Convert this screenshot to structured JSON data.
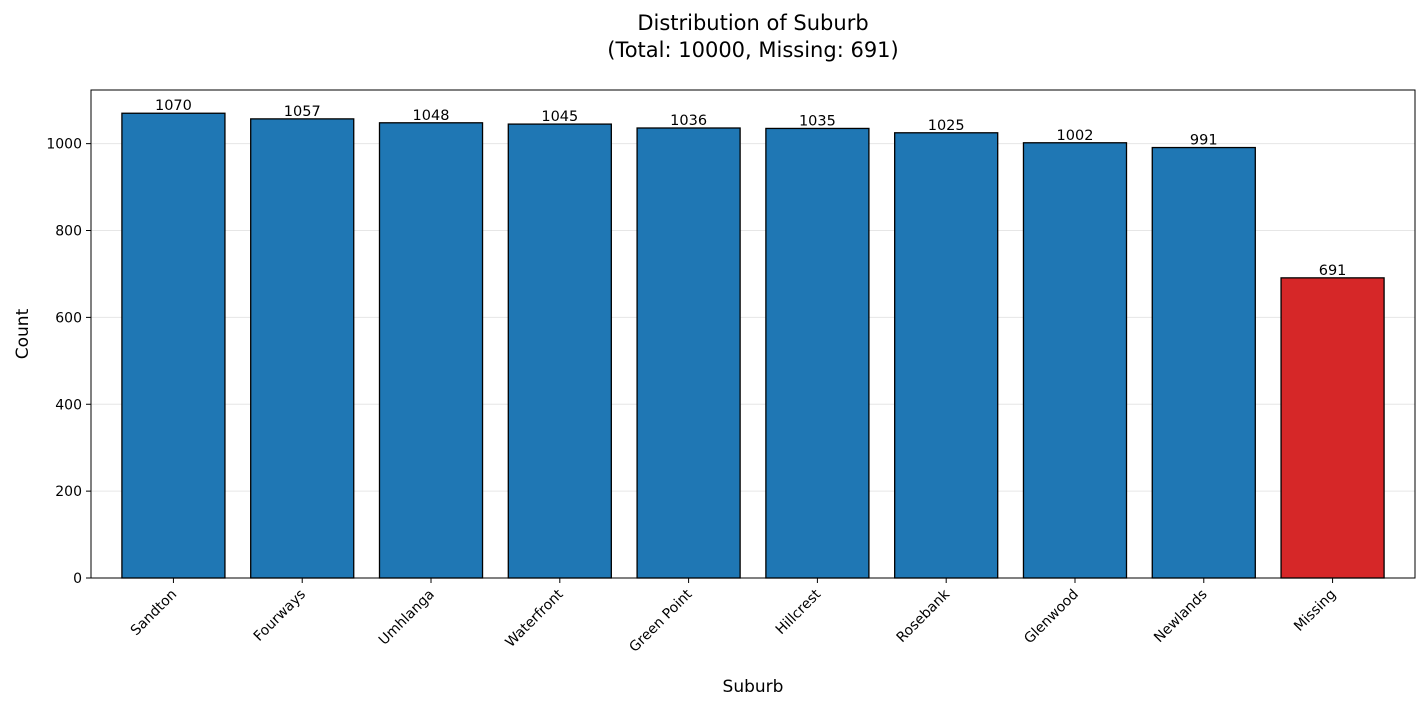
{
  "chart_data": {
    "type": "bar",
    "title_line1": "Distribution of Suburb",
    "title_line2": "(Total: 10000, Missing: 691)",
    "xlabel": "Suburb",
    "ylabel": "Count",
    "categories": [
      "Sandton",
      "Fourways",
      "Umhlanga",
      "Waterfront",
      "Green Point",
      "Hillcrest",
      "Rosebank",
      "Glenwood",
      "Newlands",
      "Missing"
    ],
    "values": [
      1070,
      1057,
      1048,
      1045,
      1036,
      1035,
      1025,
      1002,
      991,
      691
    ],
    "value_labels": [
      "1070",
      "1057",
      "1048",
      "1045",
      "1036",
      "1035",
      "1025",
      "1002",
      "991",
      "691"
    ],
    "ylim": [
      0,
      1123.5
    ],
    "yticks": [
      0,
      200,
      400,
      600,
      800,
      1000
    ],
    "ytick_labels": [
      "0",
      "200",
      "400",
      "600",
      "800",
      "1000"
    ],
    "grid": "y",
    "colors": {
      "bar": "#1f77b4",
      "missing_bar": "#d62728",
      "edge": "#000000",
      "grid": "#e6e6e6"
    }
  }
}
